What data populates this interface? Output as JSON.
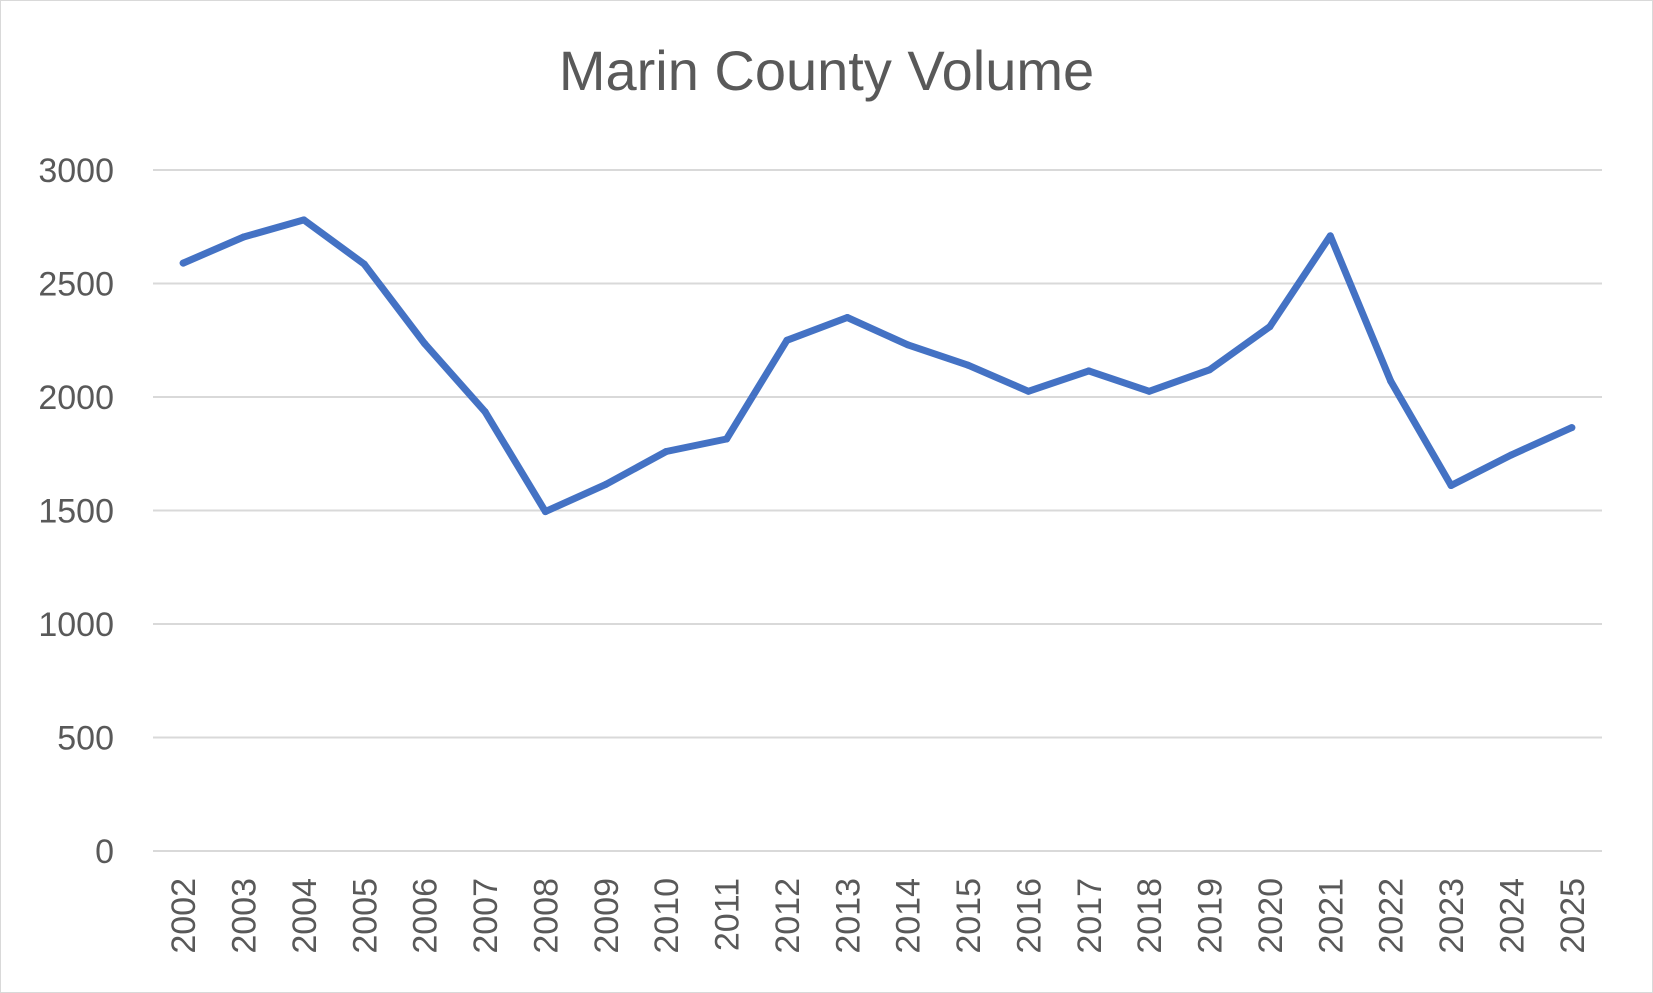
{
  "chart_data": {
    "type": "line",
    "title": "Marin County Volume",
    "xlabel": "",
    "ylabel": "",
    "ylim": [
      0,
      3000
    ],
    "yticks": [
      "0",
      "500",
      "1000",
      "1500",
      "2000",
      "2500",
      "3000"
    ],
    "grid": true,
    "legend": "none",
    "categories": [
      "2002",
      "2003",
      "2004",
      "2005",
      "2006",
      "2007",
      "2008",
      "2009",
      "2010",
      "2011",
      "2012",
      "2013",
      "2014",
      "2015",
      "2016",
      "2017",
      "2018",
      "2019",
      "2020",
      "2021",
      "2022",
      "2023",
      "2024",
      "2025"
    ],
    "series": [
      {
        "color": "#4472c4",
        "values": [
          2590,
          2705,
          2780,
          2585,
          2235,
          1935,
          1495,
          1615,
          1760,
          1815,
          2250,
          2350,
          2230,
          2140,
          2025,
          2115,
          2025,
          2120,
          2310,
          2710,
          2070,
          1610,
          1745,
          1865
        ]
      }
    ]
  }
}
